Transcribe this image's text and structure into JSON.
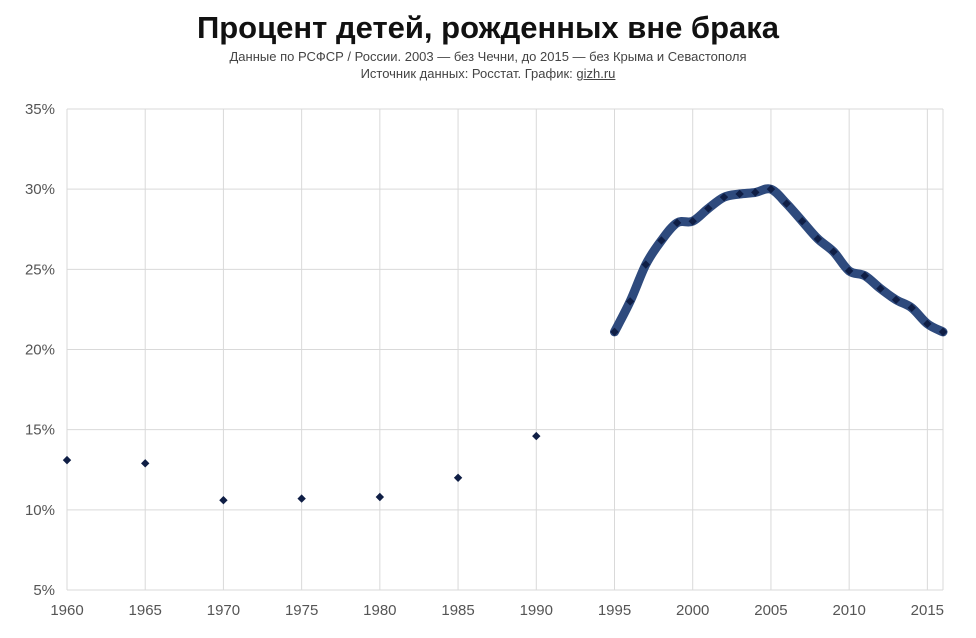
{
  "header": {
    "title": "Процент детей, рожденных вне брака",
    "subtitle": "Данные по РСФСР / России. 2003 — без Чечни, до 2015 — без Крыма и Севастополя",
    "source_prefix": "Источник данных: Росстат. График:",
    "source_link": "gizh.ru"
  },
  "colors": {
    "line": "#2e4a7d",
    "marker": "#0f1e45",
    "grid": "#d9d9d9"
  },
  "chart_data": {
    "type": "line",
    "title": "Процент детей, рожденных вне брака",
    "xlim": [
      1960,
      2016
    ],
    "ylim": [
      5,
      35
    ],
    "x_ticks": [
      1960,
      1965,
      1970,
      1975,
      1980,
      1985,
      1990,
      1995,
      2000,
      2005,
      2010,
      2015
    ],
    "y_ticks": [
      5,
      10,
      15,
      20,
      25,
      30,
      35
    ],
    "y_tick_labels": [
      "5%",
      "10%",
      "15%",
      "20%",
      "25%",
      "30%",
      "35%"
    ],
    "grid": true,
    "series": [
      {
        "style": "markers",
        "x": [
          1960,
          1965,
          1970,
          1975,
          1980,
          1985,
          1990
        ],
        "values": [
          13.1,
          12.9,
          10.6,
          10.7,
          10.8,
          12.0,
          14.6
        ]
      },
      {
        "style": "line-with-markers",
        "x": [
          1995,
          1996,
          1997,
          1998,
          1999,
          2000,
          2001,
          2002,
          2003,
          2004,
          2005,
          2006,
          2007,
          2008,
          2009,
          2010,
          2011,
          2012,
          2013,
          2014,
          2015,
          2016
        ],
        "values": [
          21.1,
          23.0,
          25.3,
          26.8,
          27.9,
          28.0,
          28.8,
          29.5,
          29.7,
          29.8,
          30.0,
          29.1,
          28.0,
          26.9,
          26.1,
          24.9,
          24.6,
          23.8,
          23.1,
          22.6,
          21.6,
          21.1
        ]
      }
    ]
  }
}
